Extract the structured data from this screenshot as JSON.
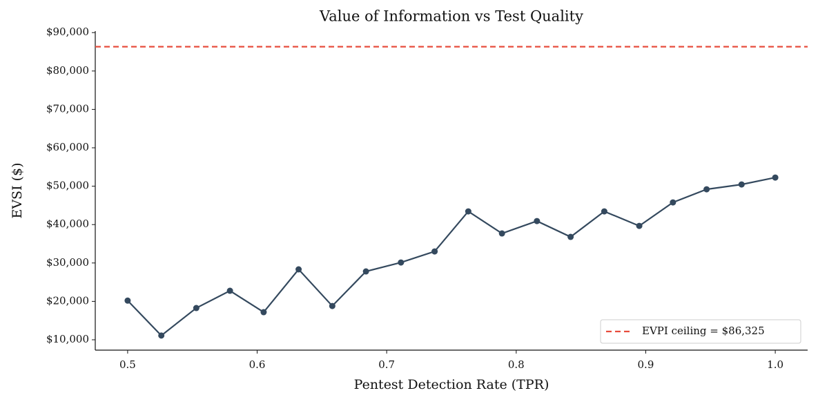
{
  "chart_data": {
    "type": "line",
    "title": "Value of Information vs Test Quality",
    "x_label": "Pentest Detection Rate (TPR)",
    "y_label": "EVSI ($)",
    "x": [
      0.5,
      0.526,
      0.553,
      0.579,
      0.605,
      0.632,
      0.658,
      0.684,
      0.711,
      0.737,
      0.763,
      0.789,
      0.816,
      0.842,
      0.868,
      0.895,
      0.921,
      0.947,
      0.974,
      1.0
    ],
    "values": [
      20200,
      11100,
      18270,
      22760,
      17190,
      28340,
      18800,
      27800,
      30130,
      33010,
      43440,
      37690,
      40920,
      36790,
      43440,
      39660,
      45780,
      49190,
      50450,
      52250
    ],
    "color": "#34495e",
    "reference_line": {
      "value": 86325,
      "label": "EVPI ceiling = $86,325",
      "color": "#e74c3c"
    },
    "xlim": [
      0.475,
      1.025
    ],
    "ylim": [
      7300,
      90400
    ],
    "xticks": [
      0.5,
      0.6,
      0.7,
      0.8,
      0.9,
      {
        "value": 1.0,
        "label": "1.0"
      }
    ],
    "yticks": [
      {
        "value": 10000,
        "label": "$10,000"
      },
      {
        "value": 20000,
        "label": "$20,000"
      },
      {
        "value": 30000,
        "label": "$30,000"
      },
      {
        "value": 40000,
        "label": "$40,000"
      },
      {
        "value": 50000,
        "label": "$50,000"
      },
      {
        "value": 60000,
        "label": "$60,000"
      },
      {
        "value": 70000,
        "label": "$70,000"
      },
      {
        "value": 80000,
        "label": "$80,000"
      },
      {
        "value": 90000,
        "label": "$90,000"
      }
    ],
    "legend_position": "lower right",
    "grid": false
  }
}
